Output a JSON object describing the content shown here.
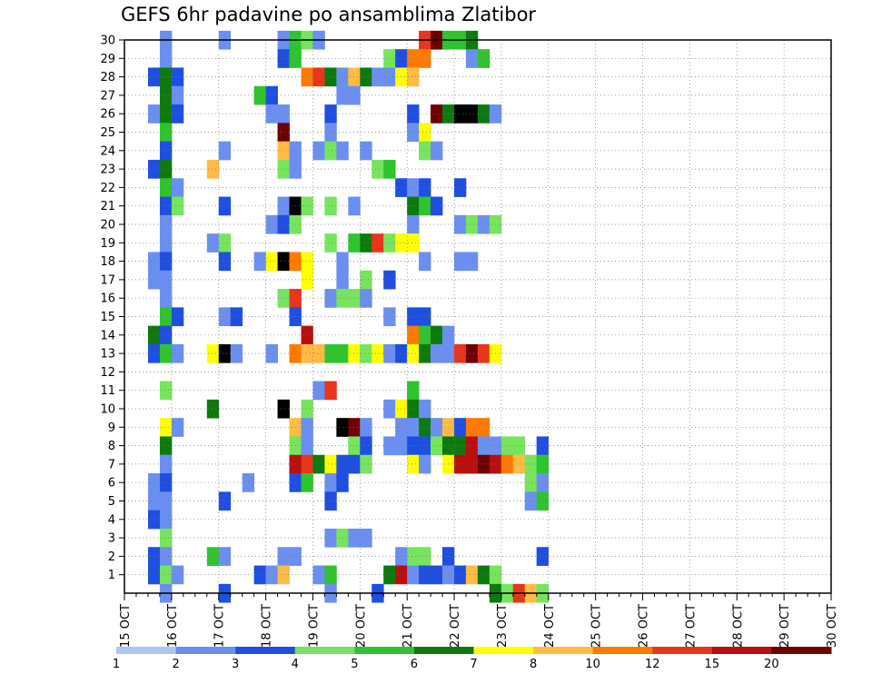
{
  "chart_data": {
    "type": "heatmap",
    "title": "GEFS 6hr padavine po ansamblima Zlatibor",
    "x_tick_labels": [
      "15 OCT",
      "16 OCT",
      "17 OCT",
      "18 OCT",
      "19 OCT",
      "20 OCT",
      "21 OCT",
      "22 OCT",
      "23 OCT",
      "24 OCT",
      "25 OCT",
      "26 OCT",
      "27 OCT",
      "28 OCT",
      "29 OCT",
      "30 OCT"
    ],
    "y_tick_labels": [
      "1",
      "2",
      "3",
      "4",
      "5",
      "6",
      "7",
      "8",
      "9",
      "10",
      "11",
      "12",
      "13",
      "14",
      "15",
      "16",
      "17",
      "18",
      "19",
      "20",
      "21",
      "22",
      "23",
      "24",
      "25",
      "26",
      "27",
      "28",
      "29",
      "30"
    ],
    "time_steps_per_day": 4,
    "xlim": [
      0,
      61
    ],
    "ylim": [
      0,
      30
    ],
    "grid": true,
    "legend": {
      "placement": "bottom",
      "labels": [
        "1",
        "2",
        "3",
        "4",
        "5",
        "6",
        "7",
        "8",
        "10",
        "12",
        "15",
        "20"
      ],
      "colors": [
        "#aec6f4",
        "#6b8ff0",
        "#1f4fe0",
        "#77e45e",
        "#2ec42e",
        "#0e7a0e",
        "#ffff00",
        "#ffbb44",
        "#ff7a00",
        "#e8361a",
        "#b80f0f",
        "#6e0000"
      ]
    },
    "cells": [
      [
        4,
        30,
        1
      ],
      [
        9,
        30,
        1
      ],
      [
        14,
        30,
        1
      ],
      [
        15,
        30,
        4
      ],
      [
        16,
        30,
        3
      ],
      [
        17,
        30,
        1
      ],
      [
        26,
        30,
        9
      ],
      [
        27,
        30,
        11
      ],
      [
        28,
        30,
        4
      ],
      [
        29,
        30,
        4
      ],
      [
        30,
        30,
        5
      ],
      [
        4,
        29,
        1
      ],
      [
        14,
        29,
        2
      ],
      [
        15,
        29,
        4
      ],
      [
        23,
        29,
        3
      ],
      [
        24,
        29,
        2
      ],
      [
        25,
        29,
        8
      ],
      [
        26,
        29,
        8
      ],
      [
        30,
        29,
        1
      ],
      [
        31,
        29,
        4
      ],
      [
        3,
        28,
        2
      ],
      [
        4,
        28,
        5
      ],
      [
        5,
        28,
        2
      ],
      [
        16,
        28,
        8
      ],
      [
        17,
        28,
        9
      ],
      [
        18,
        28,
        5
      ],
      [
        19,
        28,
        1
      ],
      [
        20,
        28,
        7
      ],
      [
        21,
        28,
        5
      ],
      [
        22,
        28,
        1
      ],
      [
        23,
        28,
        1
      ],
      [
        24,
        28,
        6
      ],
      [
        25,
        28,
        7
      ],
      [
        4,
        27,
        5
      ],
      [
        5,
        27,
        1
      ],
      [
        12,
        27,
        4
      ],
      [
        13,
        27,
        2
      ],
      [
        19,
        27,
        1
      ],
      [
        20,
        27,
        1
      ],
      [
        3,
        26,
        1
      ],
      [
        4,
        26,
        5
      ],
      [
        5,
        26,
        2
      ],
      [
        13,
        26,
        1
      ],
      [
        14,
        26,
        1
      ],
      [
        18,
        26,
        2
      ],
      [
        25,
        26,
        2
      ],
      [
        27,
        26,
        11
      ],
      [
        28,
        26,
        5
      ],
      [
        29,
        26,
        12
      ],
      [
        30,
        26,
        12
      ],
      [
        31,
        26,
        5
      ],
      [
        32,
        26,
        1
      ],
      [
        4,
        25,
        4
      ],
      [
        14,
        25,
        11
      ],
      [
        18,
        25,
        1
      ],
      [
        25,
        25,
        1
      ],
      [
        26,
        25,
        6
      ],
      [
        4,
        24,
        2
      ],
      [
        9,
        24,
        1
      ],
      [
        14,
        24,
        7
      ],
      [
        15,
        24,
        1
      ],
      [
        17,
        24,
        1
      ],
      [
        18,
        24,
        3
      ],
      [
        19,
        24,
        1
      ],
      [
        21,
        24,
        1
      ],
      [
        26,
        24,
        3
      ],
      [
        27,
        24,
        1
      ],
      [
        3,
        23,
        2
      ],
      [
        4,
        23,
        5
      ],
      [
        8,
        23,
        7
      ],
      [
        14,
        23,
        3
      ],
      [
        15,
        23,
        1
      ],
      [
        22,
        23,
        3
      ],
      [
        23,
        23,
        4
      ],
      [
        4,
        22,
        4
      ],
      [
        5,
        22,
        1
      ],
      [
        24,
        22,
        2
      ],
      [
        25,
        22,
        1
      ],
      [
        26,
        22,
        2
      ],
      [
        29,
        22,
        2
      ],
      [
        4,
        21,
        2
      ],
      [
        5,
        21,
        3
      ],
      [
        9,
        21,
        2
      ],
      [
        14,
        21,
        1
      ],
      [
        15,
        21,
        12
      ],
      [
        16,
        21,
        3
      ],
      [
        18,
        21,
        3
      ],
      [
        20,
        21,
        1
      ],
      [
        25,
        21,
        5
      ],
      [
        26,
        21,
        4
      ],
      [
        27,
        21,
        2
      ],
      [
        4,
        20,
        1
      ],
      [
        13,
        20,
        1
      ],
      [
        14,
        20,
        2
      ],
      [
        15,
        20,
        3
      ],
      [
        25,
        20,
        1
      ],
      [
        29,
        20,
        1
      ],
      [
        30,
        20,
        3
      ],
      [
        31,
        20,
        1
      ],
      [
        32,
        20,
        3
      ],
      [
        4,
        19,
        1
      ],
      [
        8,
        19,
        1
      ],
      [
        9,
        19,
        3
      ],
      [
        18,
        19,
        3
      ],
      [
        20,
        19,
        4
      ],
      [
        21,
        19,
        5
      ],
      [
        22,
        19,
        9
      ],
      [
        23,
        19,
        3
      ],
      [
        24,
        19,
        6
      ],
      [
        25,
        19,
        6
      ],
      [
        3,
        18,
        1
      ],
      [
        4,
        18,
        2
      ],
      [
        9,
        18,
        2
      ],
      [
        12,
        18,
        1
      ],
      [
        13,
        18,
        6
      ],
      [
        14,
        18,
        12
      ],
      [
        15,
        18,
        8
      ],
      [
        16,
        18,
        6
      ],
      [
        19,
        18,
        1
      ],
      [
        26,
        18,
        1
      ],
      [
        29,
        18,
        1
      ],
      [
        30,
        18,
        1
      ],
      [
        3,
        17,
        1
      ],
      [
        4,
        17,
        1
      ],
      [
        16,
        17,
        6
      ],
      [
        19,
        17,
        1
      ],
      [
        21,
        17,
        3
      ],
      [
        23,
        17,
        2
      ],
      [
        4,
        16,
        1
      ],
      [
        14,
        16,
        3
      ],
      [
        15,
        16,
        9
      ],
      [
        18,
        16,
        1
      ],
      [
        19,
        16,
        3
      ],
      [
        20,
        16,
        3
      ],
      [
        21,
        16,
        1
      ],
      [
        4,
        15,
        4
      ],
      [
        5,
        15,
        2
      ],
      [
        9,
        15,
        1
      ],
      [
        10,
        15,
        2
      ],
      [
        15,
        15,
        2
      ],
      [
        23,
        15,
        1
      ],
      [
        25,
        15,
        2
      ],
      [
        26,
        15,
        2
      ],
      [
        3,
        14,
        5
      ],
      [
        4,
        14,
        2
      ],
      [
        16,
        14,
        10
      ],
      [
        25,
        14,
        8
      ],
      [
        26,
        14,
        4
      ],
      [
        27,
        14,
        5
      ],
      [
        28,
        14,
        1
      ],
      [
        3,
        13,
        2
      ],
      [
        4,
        13,
        4
      ],
      [
        5,
        13,
        1
      ],
      [
        8,
        13,
        6
      ],
      [
        9,
        13,
        12
      ],
      [
        10,
        13,
        1
      ],
      [
        13,
        13,
        1
      ],
      [
        15,
        13,
        8
      ],
      [
        16,
        13,
        7
      ],
      [
        17,
        13,
        7
      ],
      [
        18,
        13,
        4
      ],
      [
        19,
        13,
        4
      ],
      [
        20,
        13,
        6
      ],
      [
        21,
        13,
        3
      ],
      [
        22,
        13,
        6
      ],
      [
        23,
        13,
        1
      ],
      [
        24,
        13,
        2
      ],
      [
        25,
        13,
        6
      ],
      [
        26,
        13,
        5
      ],
      [
        27,
        13,
        1
      ],
      [
        28,
        13,
        1
      ],
      [
        29,
        13,
        9
      ],
      [
        30,
        13,
        11
      ],
      [
        31,
        13,
        9
      ],
      [
        32,
        13,
        6
      ],
      [
        4,
        11,
        3
      ],
      [
        17,
        11,
        1
      ],
      [
        18,
        11,
        9
      ],
      [
        25,
        11,
        4
      ],
      [
        8,
        10,
        5
      ],
      [
        14,
        10,
        12
      ],
      [
        16,
        10,
        3
      ],
      [
        23,
        10,
        1
      ],
      [
        24,
        10,
        6
      ],
      [
        25,
        10,
        5
      ],
      [
        26,
        10,
        1
      ],
      [
        4,
        9,
        6
      ],
      [
        5,
        9,
        1
      ],
      [
        15,
        9,
        7
      ],
      [
        16,
        9,
        1
      ],
      [
        19,
        9,
        12
      ],
      [
        20,
        9,
        11
      ],
      [
        21,
        9,
        1
      ],
      [
        24,
        9,
        1
      ],
      [
        25,
        9,
        1
      ],
      [
        26,
        9,
        5
      ],
      [
        27,
        9,
        1
      ],
      [
        28,
        9,
        7
      ],
      [
        29,
        9,
        2
      ],
      [
        30,
        9,
        8
      ],
      [
        31,
        9,
        8
      ],
      [
        4,
        8,
        5
      ],
      [
        15,
        8,
        3
      ],
      [
        16,
        8,
        1
      ],
      [
        20,
        8,
        3
      ],
      [
        21,
        8,
        2
      ],
      [
        23,
        8,
        1
      ],
      [
        24,
        8,
        1
      ],
      [
        25,
        8,
        2
      ],
      [
        26,
        8,
        2
      ],
      [
        27,
        8,
        3
      ],
      [
        28,
        8,
        5
      ],
      [
        29,
        8,
        5
      ],
      [
        30,
        8,
        10
      ],
      [
        31,
        8,
        1
      ],
      [
        32,
        8,
        1
      ],
      [
        33,
        8,
        3
      ],
      [
        34,
        8,
        3
      ],
      [
        36,
        8,
        2
      ],
      [
        4,
        7,
        1
      ],
      [
        15,
        7,
        10
      ],
      [
        16,
        7,
        9
      ],
      [
        17,
        7,
        5
      ],
      [
        18,
        7,
        6
      ],
      [
        19,
        7,
        2
      ],
      [
        20,
        7,
        2
      ],
      [
        21,
        7,
        3
      ],
      [
        25,
        7,
        6
      ],
      [
        26,
        7,
        1
      ],
      [
        28,
        7,
        6
      ],
      [
        29,
        7,
        10
      ],
      [
        30,
        7,
        10
      ],
      [
        31,
        7,
        11
      ],
      [
        32,
        7,
        10
      ],
      [
        33,
        7,
        8
      ],
      [
        34,
        7,
        7
      ],
      [
        35,
        7,
        3
      ],
      [
        36,
        7,
        4
      ],
      [
        3,
        6,
        1
      ],
      [
        4,
        6,
        2
      ],
      [
        11,
        6,
        1
      ],
      [
        15,
        6,
        2
      ],
      [
        16,
        6,
        4
      ],
      [
        18,
        6,
        1
      ],
      [
        19,
        6,
        2
      ],
      [
        35,
        6,
        3
      ],
      [
        36,
        6,
        1
      ],
      [
        3,
        5,
        1
      ],
      [
        4,
        5,
        1
      ],
      [
        9,
        5,
        2
      ],
      [
        18,
        5,
        2
      ],
      [
        35,
        5,
        1
      ],
      [
        36,
        5,
        4
      ],
      [
        3,
        4,
        2
      ],
      [
        4,
        4,
        1
      ],
      [
        4,
        3,
        3
      ],
      [
        18,
        3,
        1
      ],
      [
        19,
        3,
        3
      ],
      [
        20,
        3,
        1
      ],
      [
        21,
        3,
        1
      ],
      [
        3,
        2,
        2
      ],
      [
        4,
        2,
        1
      ],
      [
        8,
        2,
        4
      ],
      [
        9,
        2,
        1
      ],
      [
        14,
        2,
        1
      ],
      [
        15,
        2,
        1
      ],
      [
        24,
        2,
        1
      ],
      [
        25,
        2,
        3
      ],
      [
        26,
        2,
        3
      ],
      [
        28,
        2,
        2
      ],
      [
        36,
        2,
        2
      ],
      [
        3,
        1,
        2
      ],
      [
        4,
        1,
        3
      ],
      [
        5,
        1,
        1
      ],
      [
        12,
        1,
        2
      ],
      [
        13,
        1,
        1
      ],
      [
        14,
        1,
        7
      ],
      [
        17,
        1,
        1
      ],
      [
        18,
        1,
        4
      ],
      [
        23,
        1,
        5
      ],
      [
        24,
        1,
        10
      ],
      [
        25,
        1,
        1
      ],
      [
        26,
        1,
        2
      ],
      [
        27,
        1,
        2
      ],
      [
        28,
        1,
        1
      ],
      [
        29,
        1,
        2
      ],
      [
        30,
        1,
        7
      ],
      [
        31,
        1,
        5
      ],
      [
        32,
        1,
        3
      ],
      [
        4,
        0,
        1
      ],
      [
        9,
        0,
        2
      ],
      [
        18,
        0,
        1
      ],
      [
        22,
        0,
        2
      ],
      [
        32,
        0,
        5
      ],
      [
        33,
        0,
        3
      ],
      [
        34,
        0,
        9
      ],
      [
        35,
        0,
        7
      ],
      [
        36,
        0,
        3
      ]
    ]
  }
}
